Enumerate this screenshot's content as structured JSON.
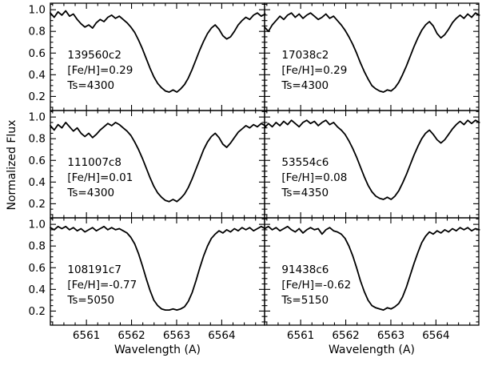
{
  "figure": {
    "ylabel": "Normalized Flux",
    "xlabel": "Wavelength (A)"
  },
  "chart_data": {
    "type": "line",
    "title": "",
    "xlabel": "Wavelength (A)",
    "ylabel": "Normalized Flux",
    "grid": false,
    "legend": "none",
    "layout": {
      "rows": 3,
      "cols": 2
    },
    "xlim": [
      6560.2,
      6564.95
    ],
    "ylim": [
      0.07,
      1.06
    ],
    "xticks": [
      6561,
      6562,
      6563,
      6564
    ],
    "yticks": [
      1.0,
      0.8,
      0.6,
      0.4,
      0.2
    ],
    "xtick_labels": [
      "6561",
      "6562",
      "6563",
      "6564"
    ],
    "ytick_labels": [
      "1.0",
      "0.8",
      "0.6",
      "0.4",
      "0.2"
    ],
    "line_color": "#000000",
    "x_start": 6560.2,
    "dx": 0.085,
    "label_x": 6560.58,
    "label_y": [
      0.55,
      0.41,
      0.27
    ],
    "panels": [
      {
        "id": "139560c2",
        "labels": [
          "139560c2",
          "[Fe/H]=0.29",
          "Ts=4300"
        ],
        "flux": [
          0.97,
          0.93,
          0.98,
          0.95,
          0.99,
          0.94,
          0.96,
          0.91,
          0.87,
          0.84,
          0.86,
          0.83,
          0.88,
          0.91,
          0.89,
          0.93,
          0.95,
          0.92,
          0.94,
          0.91,
          0.88,
          0.84,
          0.79,
          0.72,
          0.64,
          0.55,
          0.46,
          0.38,
          0.32,
          0.28,
          0.25,
          0.24,
          0.26,
          0.24,
          0.27,
          0.31,
          0.37,
          0.45,
          0.54,
          0.63,
          0.71,
          0.78,
          0.83,
          0.86,
          0.82,
          0.76,
          0.73,
          0.75,
          0.8,
          0.86,
          0.9,
          0.93,
          0.91,
          0.95,
          0.97,
          0.94,
          0.96
        ]
      },
      {
        "id": "17038c2",
        "labels": [
          "17038c2",
          "[Fe/H]=0.29",
          "Ts=4300"
        ],
        "flux": [
          0.84,
          0.8,
          0.86,
          0.9,
          0.94,
          0.91,
          0.95,
          0.97,
          0.93,
          0.96,
          0.92,
          0.95,
          0.97,
          0.94,
          0.91,
          0.93,
          0.96,
          0.92,
          0.94,
          0.9,
          0.86,
          0.81,
          0.75,
          0.68,
          0.6,
          0.51,
          0.43,
          0.36,
          0.3,
          0.27,
          0.25,
          0.24,
          0.26,
          0.25,
          0.28,
          0.33,
          0.4,
          0.48,
          0.57,
          0.66,
          0.74,
          0.81,
          0.86,
          0.89,
          0.85,
          0.78,
          0.74,
          0.77,
          0.82,
          0.88,
          0.92,
          0.95,
          0.92,
          0.96,
          0.93,
          0.97,
          0.95
        ]
      },
      {
        "id": "111007c8",
        "labels": [
          "111007c8",
          "[Fe/H]=0.01",
          "Ts=4300"
        ],
        "flux": [
          0.92,
          0.88,
          0.93,
          0.9,
          0.95,
          0.91,
          0.87,
          0.9,
          0.85,
          0.82,
          0.85,
          0.81,
          0.84,
          0.88,
          0.91,
          0.94,
          0.92,
          0.95,
          0.93,
          0.9,
          0.87,
          0.83,
          0.77,
          0.7,
          0.62,
          0.53,
          0.44,
          0.36,
          0.3,
          0.26,
          0.23,
          0.22,
          0.24,
          0.22,
          0.25,
          0.29,
          0.35,
          0.43,
          0.52,
          0.61,
          0.7,
          0.77,
          0.82,
          0.85,
          0.81,
          0.75,
          0.72,
          0.76,
          0.81,
          0.86,
          0.89,
          0.92,
          0.9,
          0.93,
          0.91,
          0.94,
          0.92
        ]
      },
      {
        "id": "53554c6",
        "labels": [
          "53554c6",
          "[Fe/H]=0.08",
          "Ts=4350"
        ],
        "flux": [
          0.9,
          0.94,
          0.91,
          0.95,
          0.92,
          0.96,
          0.93,
          0.97,
          0.94,
          0.91,
          0.95,
          0.97,
          0.94,
          0.96,
          0.92,
          0.95,
          0.97,
          0.93,
          0.95,
          0.91,
          0.88,
          0.84,
          0.78,
          0.71,
          0.63,
          0.54,
          0.45,
          0.37,
          0.31,
          0.27,
          0.25,
          0.24,
          0.26,
          0.24,
          0.27,
          0.32,
          0.39,
          0.47,
          0.56,
          0.65,
          0.73,
          0.8,
          0.85,
          0.88,
          0.84,
          0.79,
          0.76,
          0.79,
          0.84,
          0.89,
          0.93,
          0.96,
          0.93,
          0.97,
          0.94,
          0.97,
          0.95
        ]
      },
      {
        "id": "108191c7",
        "labels": [
          "108191c7",
          "[Fe/H]=-0.77",
          "Ts=5050"
        ],
        "flux": [
          0.97,
          0.95,
          0.98,
          0.96,
          0.98,
          0.95,
          0.97,
          0.94,
          0.96,
          0.93,
          0.95,
          0.97,
          0.94,
          0.96,
          0.98,
          0.95,
          0.97,
          0.95,
          0.96,
          0.94,
          0.92,
          0.88,
          0.82,
          0.73,
          0.62,
          0.5,
          0.39,
          0.3,
          0.25,
          0.22,
          0.21,
          0.21,
          0.22,
          0.21,
          0.22,
          0.24,
          0.29,
          0.37,
          0.48,
          0.6,
          0.71,
          0.8,
          0.87,
          0.91,
          0.94,
          0.92,
          0.95,
          0.93,
          0.96,
          0.94,
          0.97,
          0.95,
          0.97,
          0.94,
          0.96,
          0.98,
          0.96
        ]
      },
      {
        "id": "91438c6",
        "labels": [
          "91438c6",
          "[Fe/H]=-0.62",
          "Ts=5150"
        ],
        "flux": [
          0.96,
          0.98,
          0.95,
          0.97,
          0.94,
          0.96,
          0.98,
          0.95,
          0.93,
          0.96,
          0.92,
          0.95,
          0.97,
          0.95,
          0.96,
          0.91,
          0.95,
          0.97,
          0.94,
          0.93,
          0.91,
          0.87,
          0.8,
          0.71,
          0.6,
          0.48,
          0.38,
          0.3,
          0.25,
          0.23,
          0.22,
          0.21,
          0.23,
          0.22,
          0.24,
          0.27,
          0.33,
          0.42,
          0.53,
          0.64,
          0.74,
          0.83,
          0.89,
          0.93,
          0.91,
          0.94,
          0.92,
          0.95,
          0.93,
          0.96,
          0.94,
          0.97,
          0.95,
          0.97,
          0.94,
          0.96,
          0.95
        ]
      }
    ]
  }
}
